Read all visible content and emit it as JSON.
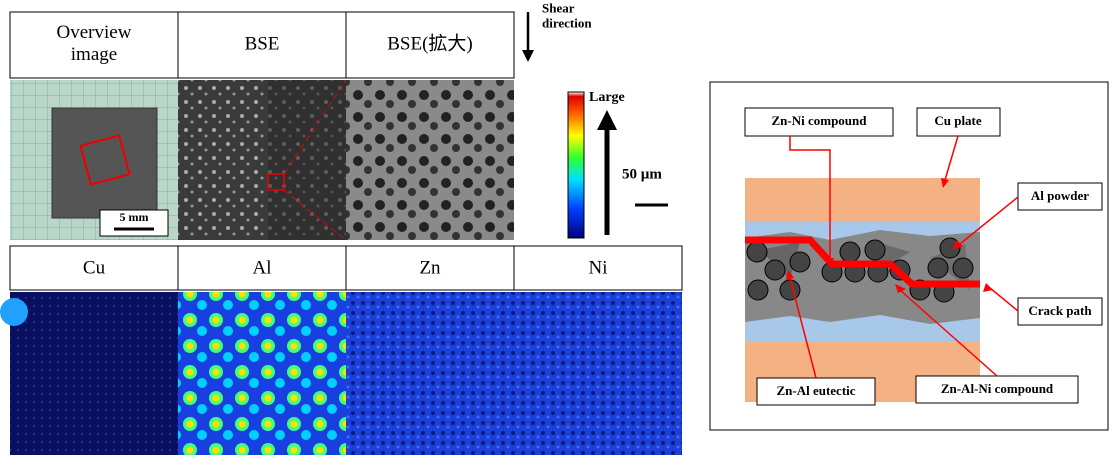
{
  "figure": {
    "top_headers": [
      "Overview\nimage",
      "BSE",
      "BSE(拡大)"
    ],
    "shear_label": "Shear\ndirection",
    "scale_overview": "5 mm",
    "colorbar_label": "Large",
    "scale_micro": "50 µm",
    "map_headers": [
      "Cu",
      "Al",
      "Zn",
      "Ni"
    ],
    "diagram": {
      "labels": [
        "Zn-Ni compound",
        "Cu plate",
        "Al powder",
        "Crack path",
        "Zn-Al eutectic",
        "Zn-Al-Ni compound"
      ]
    }
  }
}
